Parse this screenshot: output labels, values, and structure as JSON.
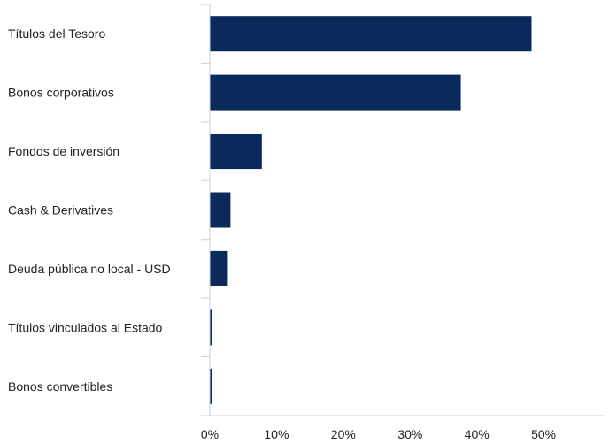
{
  "chart_data": {
    "type": "bar",
    "orientation": "horizontal",
    "categories": [
      "Títulos del Tesoro",
      "Bonos corporativos",
      "Fondos de inversión",
      "Cash & Derivatives",
      "Deuda pública no local - USD",
      "Títulos vinculados al Estado",
      "Bonos convertibles"
    ],
    "values": [
      48.2,
      37.6,
      7.8,
      3.1,
      2.7,
      0.4,
      0.3
    ],
    "xlim": [
      0,
      59
    ],
    "xticks": [
      0,
      10,
      20,
      30,
      40,
      50
    ],
    "xtick_labels": [
      "0%",
      "10%",
      "20%",
      "30%",
      "40%",
      "50%"
    ],
    "grid": false,
    "bar_color": "#0b2a5c",
    "axis_color": "#c9d0e2"
  }
}
